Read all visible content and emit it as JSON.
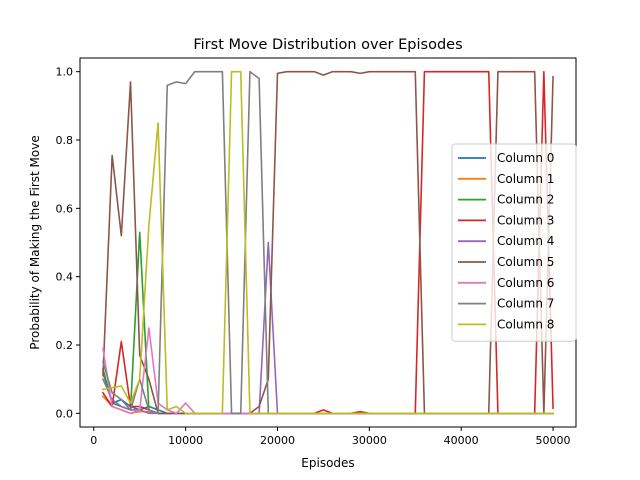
{
  "chart_data": {
    "type": "line",
    "title": "First Move Distribution over Episodes",
    "xlabel": "Episodes",
    "ylabel": "Probability of Making the First Move",
    "xlim": [
      -1500,
      52500
    ],
    "ylim": [
      -0.04,
      1.04
    ],
    "xticks": [
      0,
      10000,
      20000,
      30000,
      40000,
      50000
    ],
    "yticks": [
      0.0,
      0.2,
      0.4,
      0.6,
      0.8,
      1.0
    ],
    "xtick_labels": [
      "0",
      "10000",
      "20000",
      "30000",
      "40000",
      "50000"
    ],
    "ytick_labels": [
      "0.0",
      "0.2",
      "0.4",
      "0.6",
      "0.8",
      "1.0"
    ],
    "grid": false,
    "legend_position": "center-right",
    "x": [
      1000,
      2000,
      3000,
      4000,
      5000,
      6000,
      7000,
      8000,
      9000,
      10000,
      11000,
      12000,
      13000,
      14000,
      15000,
      16000,
      17000,
      18000,
      19000,
      20000,
      21000,
      22000,
      23000,
      24000,
      25000,
      26000,
      27000,
      28000,
      29000,
      30000,
      31000,
      32000,
      33000,
      34000,
      35000,
      36000,
      37000,
      38000,
      39000,
      40000,
      41000,
      42000,
      43000,
      44000,
      45000,
      46000,
      47000,
      48000,
      49000,
      50000
    ],
    "series": [
      {
        "name": "Column 0",
        "color": "#1f77b4",
        "values": [
          0.12,
          0.03,
          0.04,
          0.02,
          0.01,
          0.02,
          0.01,
          0.0,
          0.0,
          0.0,
          0.0,
          0.0,
          0.0,
          0.0,
          0.0,
          0.0,
          0.0,
          0.0,
          0.0,
          0.0,
          0.0,
          0.0,
          0.0,
          0.0,
          0.0,
          0.0,
          0.0,
          0.0,
          0.0,
          0.0,
          0.0,
          0.0,
          0.0,
          0.0,
          0.0,
          0.0,
          0.0,
          0.0,
          0.0,
          0.0,
          0.0,
          0.0,
          0.0,
          0.0,
          0.0,
          0.0,
          0.0,
          0.0,
          0.0,
          0.0
        ]
      },
      {
        "name": "Column 1",
        "color": "#ff7f0e",
        "values": [
          0.05,
          0.02,
          0.01,
          0.0,
          0.005,
          0.005,
          0.0,
          0.0,
          0.0,
          0.0,
          0.0,
          0.0,
          0.0,
          0.0,
          0.0,
          0.0,
          0.0,
          0.0,
          0.0,
          0.0,
          0.0,
          0.0,
          0.0,
          0.0,
          0.0,
          0.0,
          0.0,
          0.0,
          0.0,
          0.0,
          0.0,
          0.0,
          0.0,
          0.0,
          0.0,
          0.0,
          0.0,
          0.0,
          0.0,
          0.0,
          0.0,
          0.0,
          0.0,
          0.0,
          0.0,
          0.0,
          0.0,
          0.0,
          0.0,
          0.0
        ]
      },
      {
        "name": "Column 2",
        "color": "#2ca02c",
        "values": [
          0.13,
          0.03,
          0.02,
          0.01,
          0.53,
          0.01,
          0.0,
          0.0,
          0.0,
          0.0,
          0.0,
          0.0,
          0.0,
          0.0,
          0.0,
          0.0,
          0.0,
          0.0,
          0.0,
          0.0,
          0.0,
          0.0,
          0.0,
          0.0,
          0.0,
          0.0,
          0.0,
          0.0,
          0.0,
          0.0,
          0.0,
          0.0,
          0.0,
          0.0,
          0.0,
          0.0,
          0.0,
          0.0,
          0.0,
          0.0,
          0.0,
          0.0,
          0.0,
          0.0,
          0.0,
          0.0,
          0.0,
          0.0,
          0.0,
          0.0
        ]
      },
      {
        "name": "Column 3",
        "color": "#d62728",
        "values": [
          0.06,
          0.02,
          0.21,
          0.02,
          0.02,
          0.01,
          0.0,
          0.0,
          0.0,
          0.0,
          0.0,
          0.0,
          0.0,
          0.0,
          0.0,
          0.0,
          0.0,
          0.0,
          0.0,
          0.0,
          0.0,
          0.0,
          0.0,
          0.0,
          0.01,
          0.0,
          0.0,
          0.0,
          0.005,
          0.0,
          0.0,
          0.0,
          0.0,
          0.0,
          0.0,
          1.0,
          1.0,
          1.0,
          1.0,
          1.0,
          1.0,
          1.0,
          1.0,
          0.0,
          0.0,
          0.0,
          0.0,
          0.0,
          1.0,
          0.015
        ]
      },
      {
        "name": "Column 4",
        "color": "#9467bd",
        "values": [
          0.1,
          0.04,
          0.02,
          0.01,
          0.01,
          0.0,
          0.0,
          0.0,
          0.0,
          0.0,
          0.0,
          0.0,
          0.0,
          0.0,
          0.0,
          0.0,
          0.0,
          0.0,
          0.5,
          0.0,
          0.0,
          0.0,
          0.0,
          0.0,
          0.0,
          0.0,
          0.0,
          0.0,
          0.0,
          0.0,
          0.0,
          0.0,
          0.0,
          0.0,
          0.0,
          0.0,
          0.0,
          0.0,
          0.0,
          0.0,
          0.0,
          0.0,
          0.0,
          0.0,
          0.0,
          0.0,
          0.0,
          0.0,
          0.0,
          0.0
        ]
      },
      {
        "name": "Column 5",
        "color": "#8c564b",
        "values": [
          0.11,
          0.755,
          0.52,
          0.97,
          0.17,
          0.1,
          0.0,
          0.0,
          0.0,
          0.0,
          0.0,
          0.0,
          0.0,
          0.0,
          0.0,
          0.0,
          0.0,
          0.02,
          0.1,
          0.995,
          1.0,
          1.0,
          1.0,
          1.0,
          0.99,
          1.0,
          1.0,
          1.0,
          0.995,
          1.0,
          1.0,
          1.0,
          1.0,
          1.0,
          1.0,
          0.0,
          0.0,
          0.0,
          0.0,
          0.0,
          0.0,
          0.0,
          0.0,
          1.0,
          1.0,
          1.0,
          1.0,
          1.0,
          0.0,
          0.985
        ]
      },
      {
        "name": "Column 6",
        "color": "#e377c2",
        "values": [
          0.19,
          0.02,
          0.01,
          0.0,
          0.01,
          0.25,
          0.03,
          0.01,
          0.0,
          0.03,
          0.0,
          0.0,
          0.0,
          0.0,
          0.0,
          0.0,
          0.0,
          0.0,
          0.0,
          0.0,
          0.0,
          0.0,
          0.0,
          0.0,
          0.0,
          0.0,
          0.0,
          0.0,
          0.0,
          0.0,
          0.0,
          0.0,
          0.0,
          0.0,
          0.0,
          0.0,
          0.0,
          0.0,
          0.0,
          0.0,
          0.0,
          0.0,
          0.0,
          0.0,
          0.0,
          0.0,
          0.0,
          0.0,
          0.0,
          0.0
        ]
      },
      {
        "name": "Column 7",
        "color": "#7f7f7f",
        "values": [
          0.15,
          0.06,
          0.04,
          0.01,
          0.1,
          0.01,
          0.0,
          0.96,
          0.97,
          0.965,
          1.0,
          1.0,
          1.0,
          1.0,
          0.0,
          0.0,
          1.0,
          0.98,
          0.0,
          0.0,
          0.0,
          0.0,
          0.0,
          0.0,
          0.0,
          0.0,
          0.0,
          0.0,
          0.0,
          0.0,
          0.0,
          0.0,
          0.0,
          0.0,
          0.0,
          0.0,
          0.0,
          0.0,
          0.0,
          0.0,
          0.0,
          0.0,
          0.0,
          0.0,
          0.0,
          0.0,
          0.0,
          0.0,
          0.0,
          0.0
        ]
      },
      {
        "name": "Column 8",
        "color": "#bcbd22",
        "values": [
          0.07,
          0.075,
          0.08,
          0.03,
          0.1,
          0.55,
          0.85,
          0.01,
          0.02,
          0.0,
          0.0,
          0.0,
          0.0,
          0.0,
          1.0,
          1.0,
          0.0,
          0.0,
          0.0,
          0.0,
          0.0,
          0.0,
          0.0,
          0.0,
          0.0,
          0.0,
          0.0,
          0.0,
          0.0,
          0.0,
          0.0,
          0.0,
          0.0,
          0.0,
          0.0,
          0.0,
          0.0,
          0.0,
          0.0,
          0.0,
          0.0,
          0.0,
          0.0,
          0.0,
          0.0,
          0.0,
          0.0,
          0.0,
          0.0,
          0.0
        ]
      }
    ]
  }
}
